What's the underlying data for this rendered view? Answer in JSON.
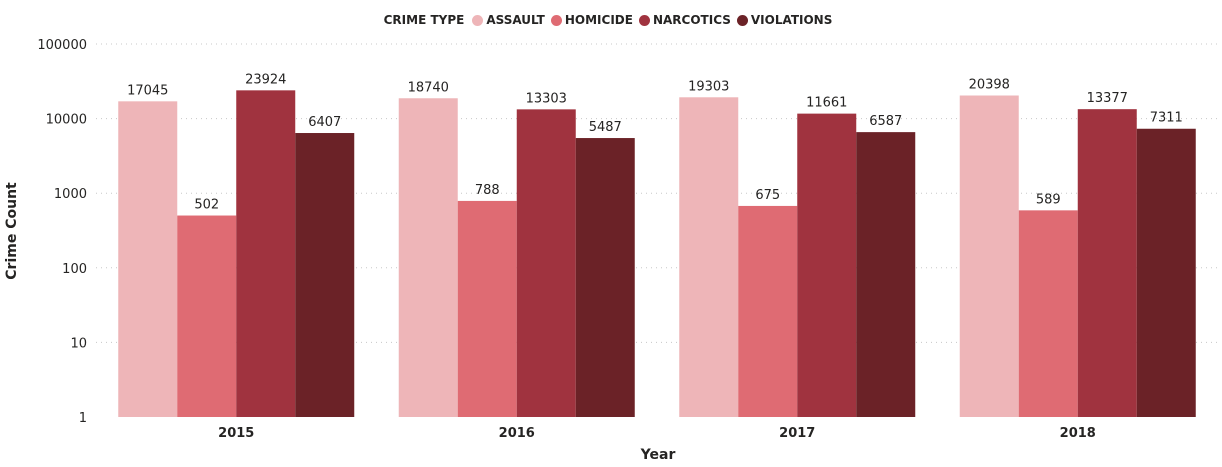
{
  "chart_data": {
    "type": "bar",
    "title": "",
    "legend_title": "CRIME TYPE",
    "legend_position": "top-center",
    "xlabel": "Year",
    "ylabel": "Crime Count",
    "y_scale": "log",
    "ylim": [
      1,
      100000
    ],
    "y_ticks": [
      "1",
      "10",
      "100",
      "1000",
      "10000",
      "100000"
    ],
    "grid": true,
    "categories": [
      "2015",
      "2016",
      "2017",
      "2018"
    ],
    "series": [
      {
        "name": "ASSAULT",
        "color": "#EEB5B8",
        "values": [
          17045,
          18740,
          19303,
          20398
        ]
      },
      {
        "name": "HOMICIDE",
        "color": "#DF6B73",
        "values": [
          502,
          788,
          675,
          589
        ]
      },
      {
        "name": "NARCOTICS",
        "color": "#A0333F",
        "values": [
          23924,
          13303,
          11661,
          13377
        ]
      },
      {
        "name": "VIOLATIONS",
        "color": "#6B2227",
        "values": [
          6407,
          5487,
          6587,
          7311
        ]
      }
    ]
  }
}
